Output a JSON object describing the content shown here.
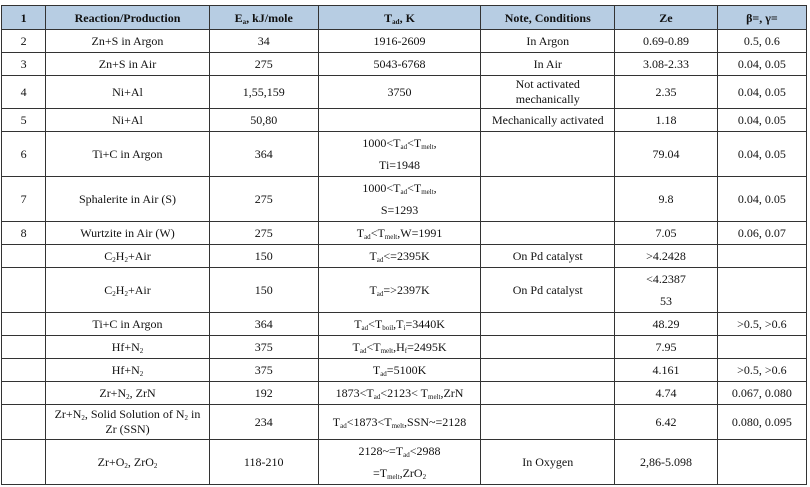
{
  "table": {
    "headers": [
      [
        "1"
      ],
      [
        "Reaction/Production"
      ],
      [
        [
          {
            "text": "E"
          },
          {
            "text": "a",
            "sub": true
          },
          {
            "text": ", kJ/mole"
          }
        ]
      ],
      [
        [
          {
            "text": "T"
          },
          {
            "text": "ad",
            "sub": true
          },
          {
            "text": ", K"
          }
        ]
      ],
      [
        "Note, Conditions"
      ],
      [
        "Ze"
      ],
      [
        "β=, γ="
      ]
    ],
    "rows": [
      [
        [
          "2"
        ],
        [
          "Zn+S in Argon"
        ],
        [
          "34"
        ],
        [
          "1916-2609"
        ],
        [
          "In Argon"
        ],
        [
          "0.69-0.89"
        ],
        [
          "0.5, 0.6"
        ]
      ],
      [
        [
          "3"
        ],
        [
          "Zn+S in Air"
        ],
        [
          "275"
        ],
        [
          "5043-6768"
        ],
        [
          "In Air"
        ],
        [
          "3.08-2.33"
        ],
        [
          "0.04, 0.05"
        ]
      ],
      [
        [
          "4"
        ],
        [
          "Ni+Al"
        ],
        [
          "1,55,159"
        ],
        [
          "3750"
        ],
        [
          "Not activated",
          "mechanically"
        ],
        [
          "2.35"
        ],
        [
          "0.04, 0.05"
        ]
      ],
      [
        [
          "5"
        ],
        [
          "Ni+Al"
        ],
        [
          "50,80"
        ],
        [],
        [
          "Mechanically activated"
        ],
        [
          "1.18"
        ],
        [
          "0.04, 0.05"
        ]
      ],
      [
        [
          "6"
        ],
        [
          "Ti+C in Argon"
        ],
        [
          "364"
        ],
        [
          [
            {
              "text": "1000<T"
            },
            {
              "text": "ad",
              "sub": true
            },
            {
              "text": "<T"
            },
            {
              "text": "melt",
              "sub": true
            },
            {
              "text": ","
            }
          ],
          "Ti=1948"
        ],
        [],
        [
          "79.04"
        ],
        [
          "0.04, 0.05"
        ]
      ],
      [
        [
          "7"
        ],
        [
          "Sphalerite in Air (S)"
        ],
        [
          "275"
        ],
        [
          [
            {
              "text": "1000<T"
            },
            {
              "text": "ad",
              "sub": true
            },
            {
              "text": "<T"
            },
            {
              "text": "melt",
              "sub": true
            },
            {
              "text": ","
            }
          ],
          "S=1293"
        ],
        [],
        [
          "9.8"
        ],
        [
          "0.04, 0.05"
        ]
      ],
      [
        [
          "8"
        ],
        [
          "Wurtzite in Air (W)"
        ],
        [
          "275"
        ],
        [
          [
            {
              "text": "T"
            },
            {
              "text": "ad",
              "sub": true
            },
            {
              "text": "<T"
            },
            {
              "text": "melt",
              "sub": true
            },
            {
              "text": ",W=1991"
            }
          ]
        ],
        [],
        [
          "7.05"
        ],
        [
          "0.06, 0.07"
        ]
      ],
      [
        [],
        [
          [
            {
              "text": "C"
            },
            {
              "text": "2",
              "sub": true
            },
            {
              "text": "H"
            },
            {
              "text": "2",
              "sub": true
            },
            {
              "text": "+Air"
            }
          ]
        ],
        [
          "150"
        ],
        [
          [
            {
              "text": "T"
            },
            {
              "text": "ad",
              "sub": true
            },
            {
              "text": "<=2395K"
            }
          ]
        ],
        [
          "On Pd catalyst"
        ],
        [
          ">4.2428"
        ],
        []
      ],
      [
        [],
        [
          [
            {
              "text": "C"
            },
            {
              "text": "2",
              "sub": true
            },
            {
              "text": "H"
            },
            {
              "text": "2",
              "sub": true
            },
            {
              "text": "+Air"
            }
          ]
        ],
        [
          "150"
        ],
        [
          [
            {
              "text": "T"
            },
            {
              "text": "ad",
              "sub": true
            },
            {
              "text": "=>2397K"
            }
          ]
        ],
        [
          "On Pd catalyst"
        ],
        [
          "<4.2387",
          "53"
        ],
        []
      ],
      [
        [],
        [
          "Ti+C in Argon"
        ],
        [
          "364"
        ],
        [
          [
            {
              "text": "T"
            },
            {
              "text": "ad",
              "sub": true
            },
            {
              "text": "<T"
            },
            {
              "text": "boil",
              "sub": true
            },
            {
              "text": ",T"
            },
            {
              "text": "i",
              "sub": true
            },
            {
              "text": "=3440K"
            }
          ]
        ],
        [],
        [
          "48.29"
        ],
        [
          ">0.5, >0.6"
        ]
      ],
      [
        [],
        [
          [
            {
              "text": "Hf+N"
            },
            {
              "text": "2",
              "sub": true
            }
          ]
        ],
        [
          "375"
        ],
        [
          [
            {
              "text": "T"
            },
            {
              "text": "ad",
              "sub": true
            },
            {
              "text": "<T"
            },
            {
              "text": "melt",
              "sub": true
            },
            {
              "text": ",H"
            },
            {
              "text": "f",
              "sub": true
            },
            {
              "text": "=2495K"
            }
          ]
        ],
        [],
        [
          "7.95"
        ],
        []
      ],
      [
        [],
        [
          [
            {
              "text": "Hf+N"
            },
            {
              "text": "2",
              "sub": true
            }
          ]
        ],
        [
          "375"
        ],
        [
          [
            {
              "text": "T"
            },
            {
              "text": "ad",
              "sub": true
            },
            {
              "text": "=5100K"
            }
          ]
        ],
        [],
        [
          "4.161"
        ],
        [
          ">0.5, >0.6"
        ]
      ],
      [
        [],
        [
          [
            {
              "text": "Zr+N"
            },
            {
              "text": "2",
              "sub": true
            },
            {
              "text": ", ZrN"
            }
          ]
        ],
        [
          "192"
        ],
        [
          [
            {
              "text": "1873<T"
            },
            {
              "text": "ad",
              "sub": true
            },
            {
              "text": "<2123< T"
            },
            {
              "text": "melt",
              "sub": true
            },
            {
              "text": ",ZrN"
            }
          ]
        ],
        [],
        [
          "4.74"
        ],
        [
          "0.067, 0.080"
        ]
      ],
      [
        [],
        [
          [
            {
              "text": "Zr+N"
            },
            {
              "text": "2",
              "sub": true
            },
            {
              "text": ", Solid Solution of N"
            },
            {
              "text": "2",
              "sub": true
            },
            {
              "text": " in"
            }
          ],
          "Zr (SSN)"
        ],
        [
          "234"
        ],
        [
          [
            {
              "text": "T"
            },
            {
              "text": "ad",
              "sub": true
            },
            {
              "text": "<1873<T"
            },
            {
              "text": "melt",
              "sub": true
            },
            {
              "text": ",SSN~=2128"
            }
          ]
        ],
        [],
        [
          "6.42"
        ],
        [
          "0.080, 0.095"
        ]
      ],
      [
        [],
        [
          [
            {
              "text": "Zr+O"
            },
            {
              "text": "2",
              "sub": true
            },
            {
              "text": ", ZrO"
            },
            {
              "text": "2",
              "sub": true
            }
          ]
        ],
        [
          "118-210"
        ],
        [
          [
            {
              "text": "2128~=T"
            },
            {
              "text": "ad",
              "sub": true
            },
            {
              "text": "<2988"
            }
          ],
          [
            {
              "text": "=T"
            },
            {
              "text": "melt",
              "sub": true
            },
            {
              "text": ",ZrO"
            },
            {
              "text": "2",
              "sub": true
            }
          ]
        ],
        [
          "In Oxygen"
        ],
        [
          "2,86-5.098"
        ],
        []
      ]
    ]
  }
}
